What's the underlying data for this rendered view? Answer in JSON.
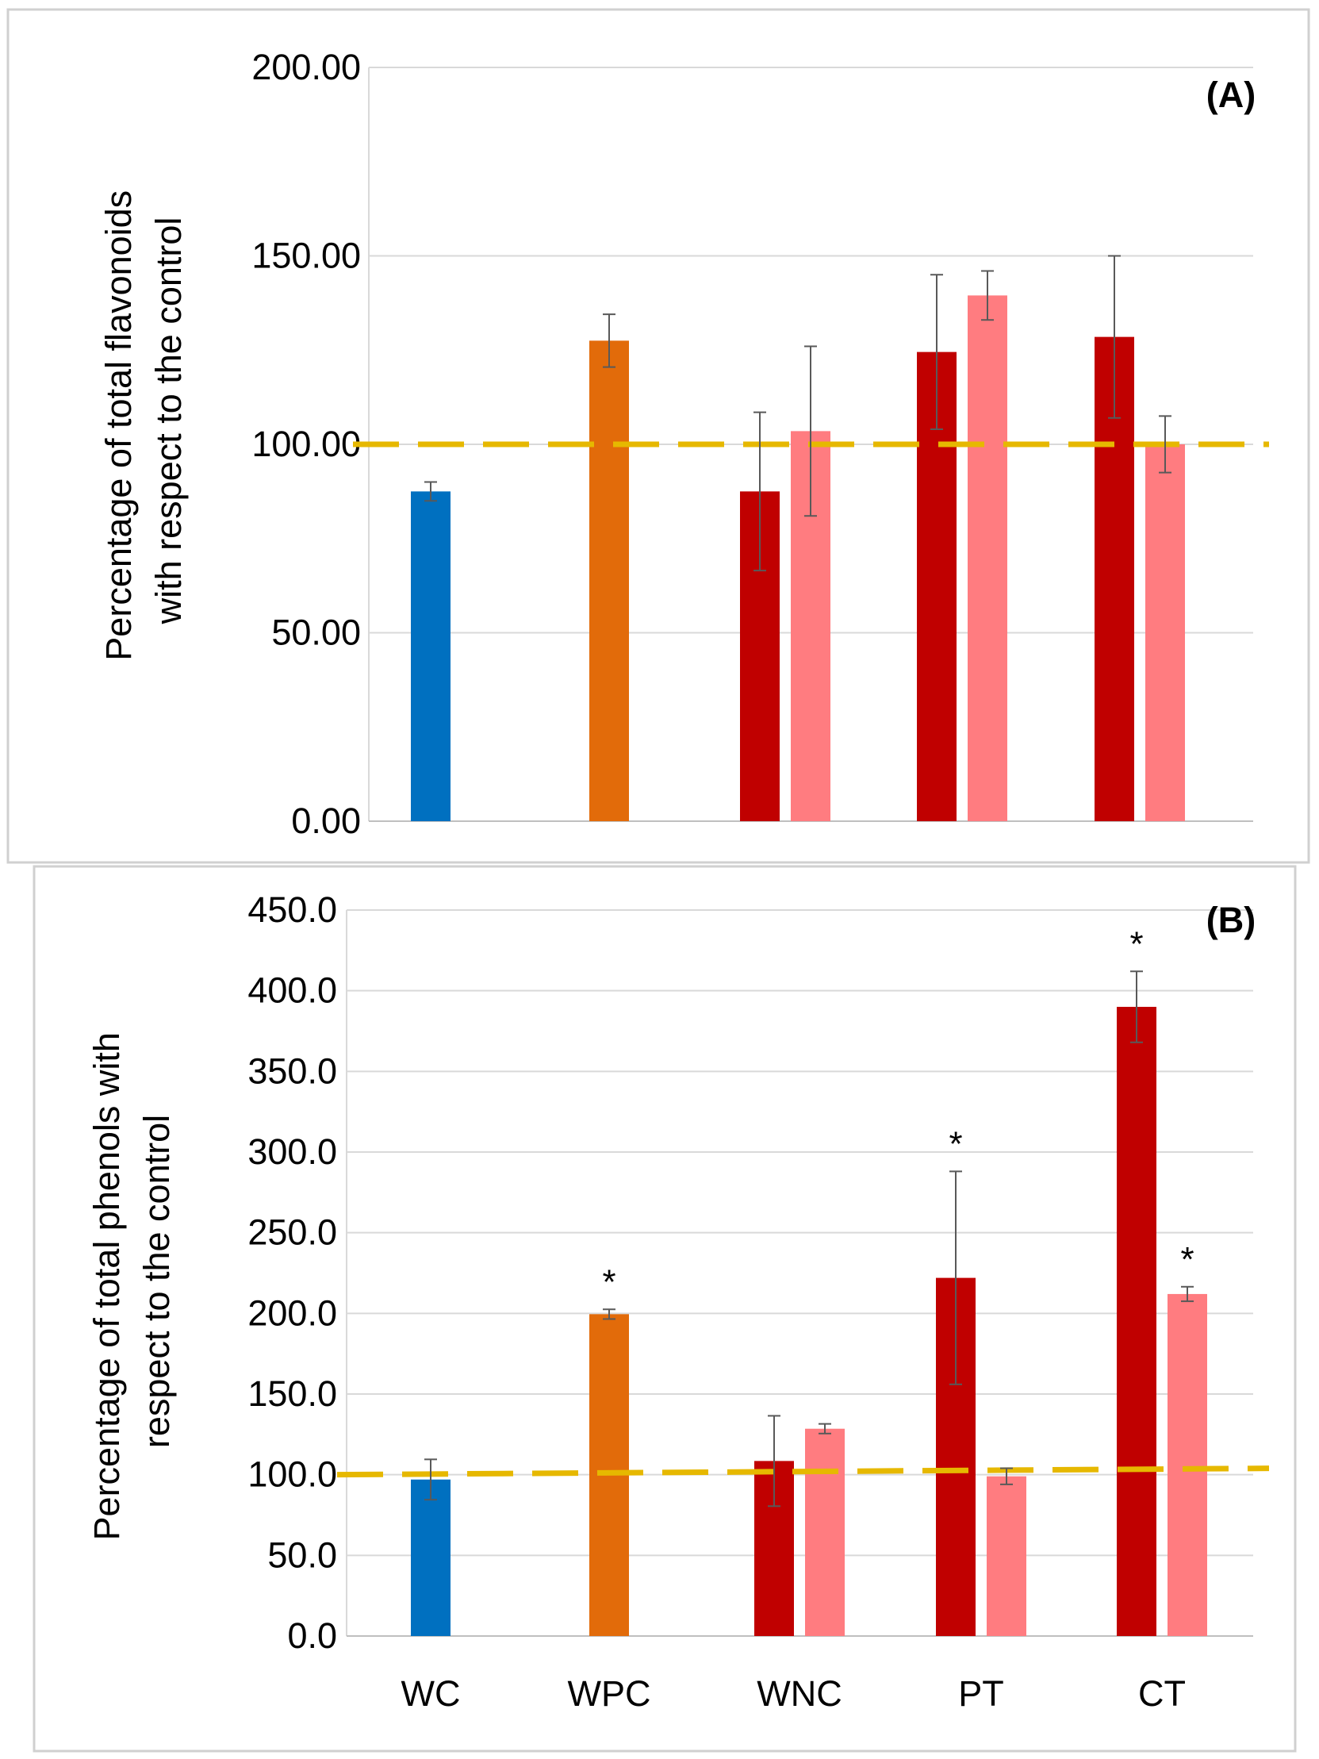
{
  "colors": {
    "WC": "#0070C0",
    "WPC": "#E26B0A",
    "dark_red": "#C00000",
    "light_red": "#FF7C80",
    "reference_line": "#E6B800",
    "grid": "#D9D9D9",
    "error_bar": "#595959"
  },
  "chart_data": [
    {
      "type": "bar",
      "panel_label": "(A)",
      "title": "",
      "xlabel": "",
      "ylabel_lines": [
        "Percentage of total flavonoids",
        "with respect to the control"
      ],
      "ylim": [
        0,
        200
      ],
      "yticks": [
        "0.00",
        "50.00",
        "100.00",
        "150.00",
        "200.00"
      ],
      "categories": [
        "WC",
        "WPC",
        "WNC",
        "PT",
        "CT"
      ],
      "show_category_labels": false,
      "reference_line": 100,
      "bars": [
        {
          "category": "WC",
          "slot": 0,
          "value": 87.5,
          "error": 2.5,
          "color_key": "WC",
          "significant": false
        },
        {
          "category": "WPC",
          "slot": 0,
          "value": 127.5,
          "error": 7,
          "color_key": "WPC",
          "significant": false
        },
        {
          "category": "WNC",
          "slot": 0,
          "value": 87.5,
          "error": 21,
          "color_key": "dark_red",
          "significant": false
        },
        {
          "category": "WNC",
          "slot": 1,
          "value": 103.5,
          "error": 22.5,
          "color_key": "light_red",
          "significant": false
        },
        {
          "category": "PT",
          "slot": 0,
          "value": 124.5,
          "error": 20.5,
          "color_key": "dark_red",
          "significant": false
        },
        {
          "category": "PT",
          "slot": 1,
          "value": 139.5,
          "error": 6.5,
          "color_key": "light_red",
          "significant": false
        },
        {
          "category": "CT",
          "slot": 0,
          "value": 128.5,
          "error": 21.5,
          "color_key": "dark_red",
          "significant": false
        },
        {
          "category": "CT",
          "slot": 1,
          "value": 100,
          "error": 7.5,
          "color_key": "light_red",
          "significant": false
        }
      ],
      "significance_mark": "*"
    },
    {
      "type": "bar",
      "panel_label": "(B)",
      "title": "",
      "xlabel": "",
      "ylabel_lines": [
        "Percentage of total phenols with",
        "respect to the control"
      ],
      "ylim": [
        0,
        450
      ],
      "yticks": [
        "0.0",
        "50.0",
        "100.0",
        "150.0",
        "200.0",
        "250.0",
        "300.0",
        "350.0",
        "400.0",
        "450.0"
      ],
      "categories": [
        "WC",
        "WPC",
        "WNC",
        "PT",
        "CT"
      ],
      "show_category_labels": true,
      "reference_line": 100,
      "bars": [
        {
          "category": "WC",
          "slot": 0,
          "value": 97,
          "error": 12.5,
          "color_key": "WC",
          "significant": false
        },
        {
          "category": "WPC",
          "slot": 0,
          "value": 199.5,
          "error": 3,
          "color_key": "WPC",
          "significant": true
        },
        {
          "category": "WNC",
          "slot": 0,
          "value": 108.5,
          "error": 28,
          "color_key": "dark_red",
          "significant": false
        },
        {
          "category": "WNC",
          "slot": 1,
          "value": 128.5,
          "error": 3,
          "color_key": "light_red",
          "significant": false
        },
        {
          "category": "PT",
          "slot": 0,
          "value": 222,
          "error": 66,
          "color_key": "dark_red",
          "significant": true
        },
        {
          "category": "PT",
          "slot": 1,
          "value": 99,
          "error": 5,
          "color_key": "light_red",
          "significant": false
        },
        {
          "category": "CT",
          "slot": 0,
          "value": 390,
          "error": 22,
          "color_key": "dark_red",
          "significant": true
        },
        {
          "category": "CT",
          "slot": 1,
          "value": 212,
          "error": 4.5,
          "color_key": "light_red",
          "significant": true
        }
      ],
      "significance_mark": "*"
    }
  ]
}
